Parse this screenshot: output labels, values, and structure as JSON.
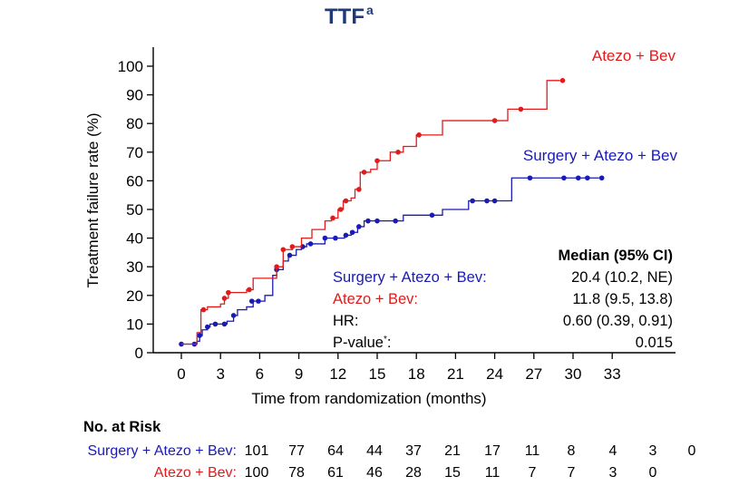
{
  "chart_data": {
    "type": "line",
    "title": "TTF",
    "title_superscript": "a",
    "xlabel": "Time from randomization (months)",
    "ylabel": "Treatment failure rate (%)",
    "xlim": [
      -2,
      36
    ],
    "ylim": [
      0,
      100
    ],
    "x_ticks": [
      0,
      3,
      6,
      9,
      12,
      15,
      18,
      21,
      24,
      27,
      30,
      33
    ],
    "y_ticks": [
      0,
      10,
      20,
      30,
      40,
      50,
      60,
      70,
      80,
      90,
      100
    ],
    "grid": false,
    "series": [
      {
        "name": "Surgery + Atezo + Bev",
        "color": "#1a1ab8",
        "steps": [
          [
            0,
            3
          ],
          [
            1,
            3
          ],
          [
            1.2,
            4
          ],
          [
            1.4,
            6
          ],
          [
            1.6,
            8
          ],
          [
            2,
            9
          ],
          [
            2.2,
            10
          ],
          [
            3,
            10
          ],
          [
            3.5,
            11
          ],
          [
            4,
            13
          ],
          [
            4.3,
            15
          ],
          [
            5,
            16
          ],
          [
            5.5,
            18
          ],
          [
            6,
            18
          ],
          [
            6.4,
            20
          ],
          [
            7,
            27
          ],
          [
            7.3,
            29
          ],
          [
            7.8,
            32
          ],
          [
            8.2,
            34
          ],
          [
            8.8,
            36
          ],
          [
            9.2,
            37
          ],
          [
            9.6,
            38
          ],
          [
            11,
            40
          ],
          [
            12,
            40
          ],
          [
            12.5,
            41
          ],
          [
            13,
            42
          ],
          [
            13.5,
            44
          ],
          [
            14,
            46
          ],
          [
            15,
            46
          ],
          [
            16,
            46
          ],
          [
            17,
            48
          ],
          [
            18,
            48
          ],
          [
            20,
            50
          ],
          [
            22,
            53
          ],
          [
            23,
            53
          ],
          [
            24,
            53
          ],
          [
            25,
            53
          ],
          [
            25.3,
            61
          ],
          [
            32,
            61
          ]
        ],
        "censor_points": [
          [
            0,
            3
          ],
          [
            1,
            3
          ],
          [
            1.4,
            6
          ],
          [
            2,
            9
          ],
          [
            2.6,
            10
          ],
          [
            3.3,
            10
          ],
          [
            4,
            13
          ],
          [
            5.4,
            18
          ],
          [
            5.9,
            18
          ],
          [
            7.3,
            29
          ],
          [
            8.3,
            34
          ],
          [
            9.3,
            37
          ],
          [
            9.9,
            38
          ],
          [
            11,
            40
          ],
          [
            11.8,
            40
          ],
          [
            12.6,
            41
          ],
          [
            13.1,
            42
          ],
          [
            13.6,
            44
          ],
          [
            14.3,
            46
          ],
          [
            15,
            46
          ],
          [
            16.4,
            46
          ],
          [
            19.2,
            48
          ],
          [
            22.3,
            53
          ],
          [
            23.4,
            53
          ],
          [
            24,
            53
          ],
          [
            26.7,
            61
          ],
          [
            29.3,
            61
          ],
          [
            30.4,
            61
          ],
          [
            31.1,
            61
          ],
          [
            32.2,
            61
          ]
        ]
      },
      {
        "name": "Atezo + Bev",
        "color": "#e21a1a",
        "steps": [
          [
            0,
            3
          ],
          [
            1,
            3
          ],
          [
            1.2,
            7
          ],
          [
            1.5,
            15
          ],
          [
            2,
            16
          ],
          [
            2.5,
            16
          ],
          [
            3,
            17
          ],
          [
            3.3,
            19
          ],
          [
            3.6,
            21
          ],
          [
            4.5,
            21
          ],
          [
            5,
            22
          ],
          [
            5.5,
            26
          ],
          [
            7,
            26
          ],
          [
            7.3,
            30
          ],
          [
            7.8,
            36
          ],
          [
            8.5,
            37
          ],
          [
            9.2,
            40
          ],
          [
            10,
            43
          ],
          [
            11,
            46
          ],
          [
            11.5,
            47
          ],
          [
            12,
            50
          ],
          [
            12.4,
            53
          ],
          [
            13,
            54
          ],
          [
            13.3,
            57
          ],
          [
            13.7,
            63
          ],
          [
            14.5,
            64
          ],
          [
            15,
            67
          ],
          [
            16,
            70
          ],
          [
            17,
            72
          ],
          [
            18,
            76
          ],
          [
            19.5,
            76
          ],
          [
            20,
            81
          ],
          [
            23,
            81
          ],
          [
            24,
            81
          ],
          [
            25,
            85
          ],
          [
            27,
            85
          ],
          [
            28,
            95
          ],
          [
            29,
            95
          ]
        ],
        "censor_points": [
          [
            1.7,
            15
          ],
          [
            3.3,
            19
          ],
          [
            3.6,
            21
          ],
          [
            5.2,
            22
          ],
          [
            7.3,
            30
          ],
          [
            7.8,
            36
          ],
          [
            8.5,
            37
          ],
          [
            11.6,
            47
          ],
          [
            12.2,
            50
          ],
          [
            12.6,
            53
          ],
          [
            13.6,
            57
          ],
          [
            14,
            63
          ],
          [
            15,
            67
          ],
          [
            16.6,
            70
          ],
          [
            18.2,
            76
          ],
          [
            24,
            81
          ],
          [
            26,
            85
          ],
          [
            29.2,
            95
          ]
        ]
      }
    ],
    "series_labels": [
      "Atezo + Bev",
      "Surgery + Atezo + Bev"
    ],
    "stats_table": {
      "header": "Median (95% CI)",
      "rows": [
        {
          "label": "Surgery + Atezo + Bev:",
          "value": "20.4 (10.2, NE)",
          "color": "#1a1ab8"
        },
        {
          "label": "Atezo + Bev:",
          "value": "11.8 (9.5, 13.8)",
          "color": "#e21a1a"
        },
        {
          "label": "HR:",
          "value": "0.60 (0.39, 0.91)",
          "color": "#000000"
        },
        {
          "label": "P-value",
          "label_sup": "*",
          "label_suffix": ":",
          "value": "0.015",
          "color": "#000000"
        }
      ]
    },
    "at_risk": {
      "title": "No. at Risk",
      "rows": [
        {
          "label": "Surgery + Atezo + Bev:",
          "color": "#1a1ab8",
          "values": [
            101,
            77,
            64,
            44,
            37,
            21,
            17,
            11,
            8,
            4,
            3,
            0
          ]
        },
        {
          "label": "Atezo + Bev:",
          "color": "#e21a1a",
          "values": [
            100,
            78,
            61,
            46,
            28,
            15,
            11,
            7,
            7,
            3,
            0
          ]
        }
      ]
    }
  }
}
